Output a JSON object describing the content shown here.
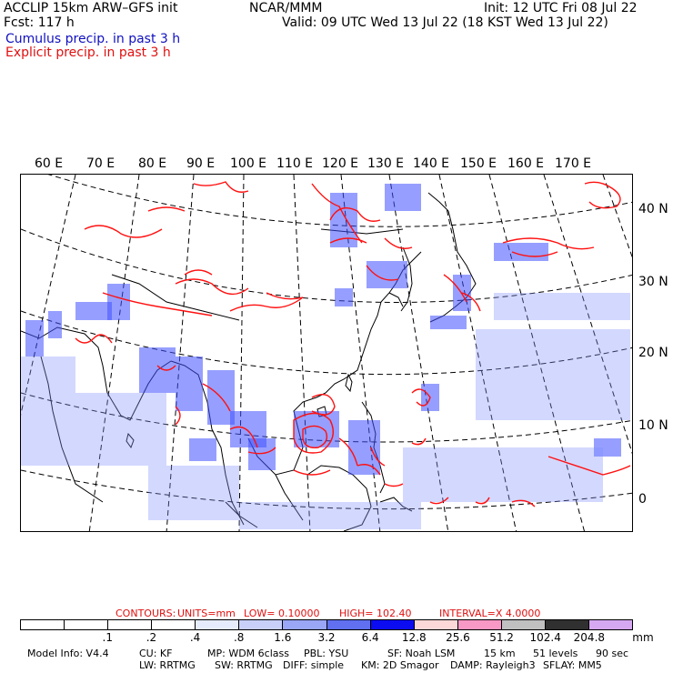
{
  "header": {
    "model_title": "ACCLIP 15km ARW–GFS init",
    "forecast": "Fcst:  117 h",
    "org": "NCAR/MMM",
    "init": "Init: 12 UTC Fri 08 Jul 22",
    "valid": "Valid: 09 UTC Wed 13 Jul 22 (18 KST Wed 13 Jul 22)",
    "legend_cumulus": "Cumulus precip. in past 3 h",
    "legend_explicit": "Explicit precip. in past 3 h"
  },
  "map": {
    "longitude_labels": [
      "60 E",
      "70 E",
      "80 E",
      "90 E",
      "100 E",
      "110 E",
      "120 E",
      "130 E",
      "140 E",
      "150 E",
      "160 E",
      "170 E"
    ],
    "latitude_labels": [
      "40 N",
      "30 N",
      "20 N",
      "10 N",
      "0"
    ],
    "colors": {
      "cumulus": "#4050ff",
      "explicit": "#ff1010",
      "coast": "#000000"
    }
  },
  "contours": {
    "label": "CONTOURS:",
    "units": "UNITS=mm",
    "low": "LOW= 0.10000",
    "high": "HIGH=  102.40",
    "interval": "INTERVAL=X  4.0000"
  },
  "colorbar": {
    "colors": [
      "#ffffff",
      "#ffffff",
      "#ffffff",
      "#ffffff",
      "#e6ecfc",
      "#c8d0fa",
      "#9aa6f6",
      "#6070f0",
      "#0c0cf0",
      "#fcd8d8",
      "#f898c4",
      "#c0c0c0",
      "#303030",
      "#d6a8f2"
    ],
    "labels": [
      ".1",
      ".2",
      ".4",
      ".8",
      "1.6",
      "3.2",
      "6.4",
      "12.8",
      "25.6",
      "51.2",
      "102.4",
      "204.8"
    ],
    "unit": "mm"
  },
  "footer": {
    "model_info": "Model Info: V4.4",
    "cu": "CU: KF",
    "mp": "MP: WDM 6class",
    "pbl": "PBL: YSU",
    "sf": "SF: Noah LSM",
    "res": "15 km",
    "levels": "51 levels",
    "dt": "90 sec",
    "lw": "LW: RRTMG",
    "sw": "SW: RRTMG",
    "diff": "DIFF: simple",
    "km": "KM: 2D Smagor",
    "damp": "DAMP: Rayleigh3",
    "sflay": "SFLAY: MM5"
  }
}
